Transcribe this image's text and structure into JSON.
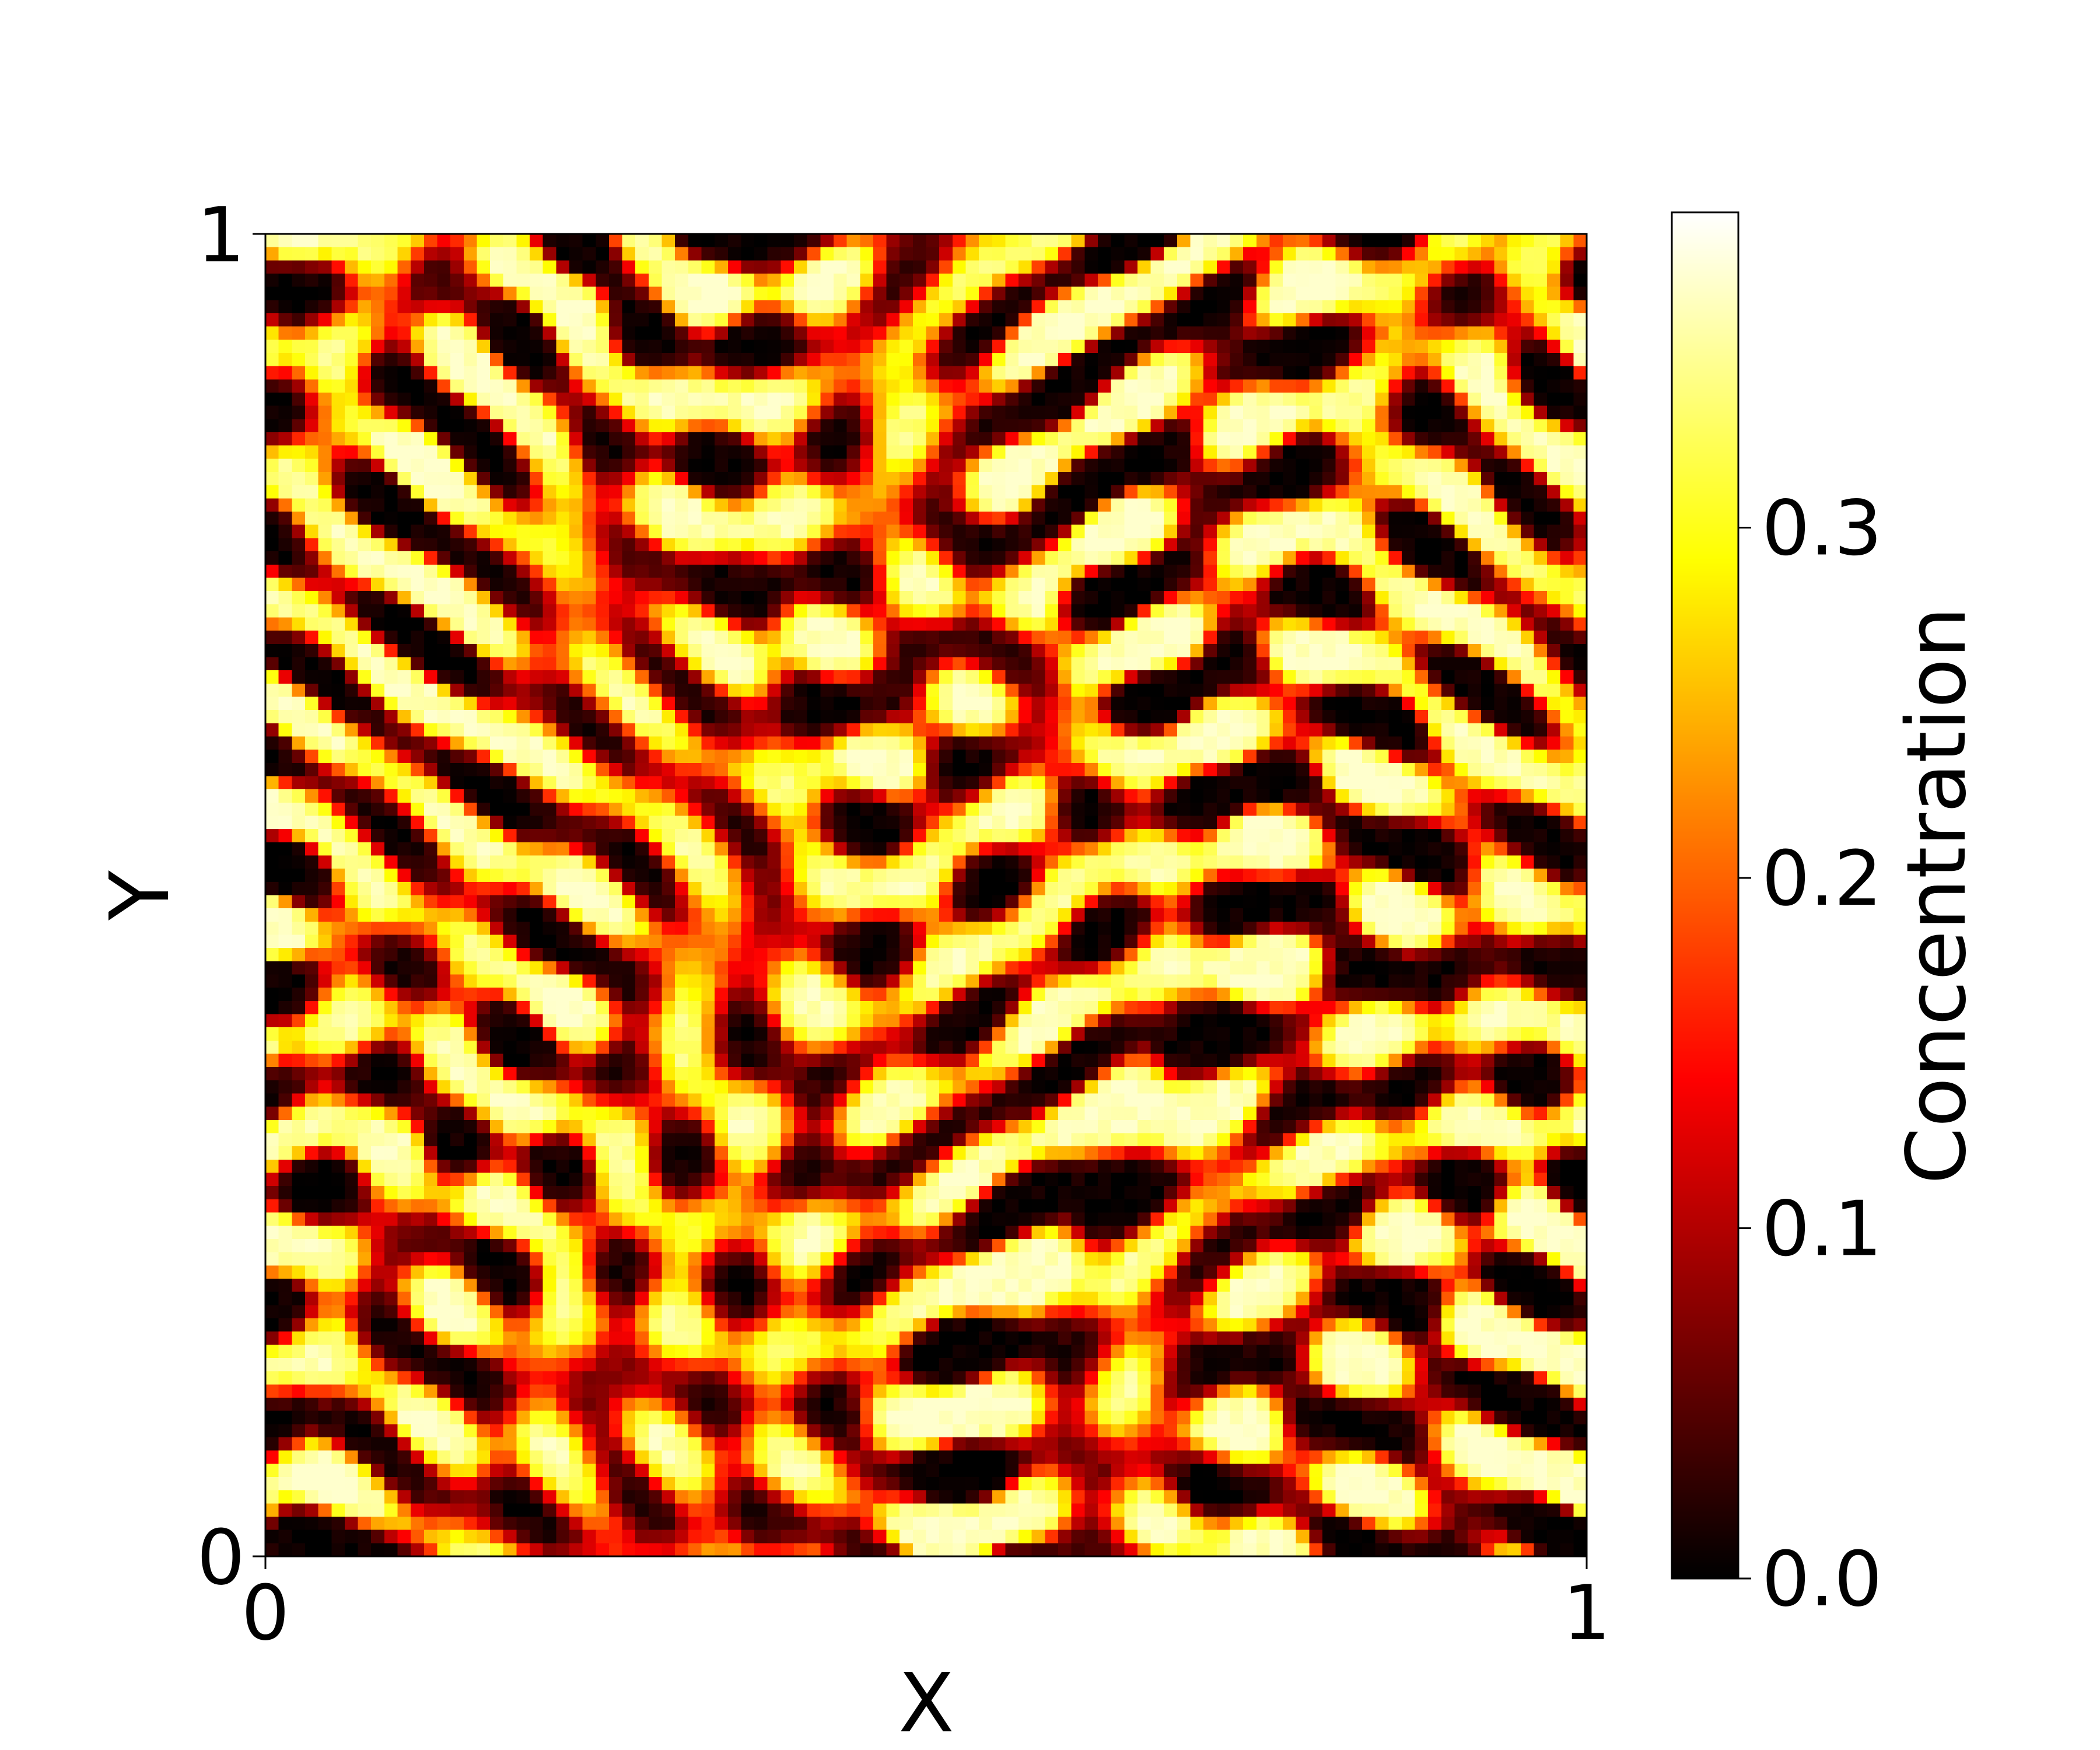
{
  "chart_data": {
    "type": "heatmap",
    "title": "",
    "xlabel": "X",
    "ylabel": "Y",
    "xlim": [
      0,
      1
    ],
    "ylim": [
      0,
      1
    ],
    "x_ticks": [
      "0",
      "1"
    ],
    "y_ticks": [
      "0",
      "1"
    ],
    "colormap": "hot",
    "grid_resolution": [
      100,
      100
    ],
    "colorbar": {
      "label": "Concentration",
      "range": [
        0.0,
        0.39
      ],
      "ticks": [
        0.0,
        0.1,
        0.2,
        0.3
      ],
      "tick_labels": [
        "0.0",
        "0.1",
        "0.2",
        "0.3"
      ]
    },
    "values": {
      "description": "",
      "min": 0.0,
      "max": 0.39,
      "dominant_feature": ""
    }
  }
}
